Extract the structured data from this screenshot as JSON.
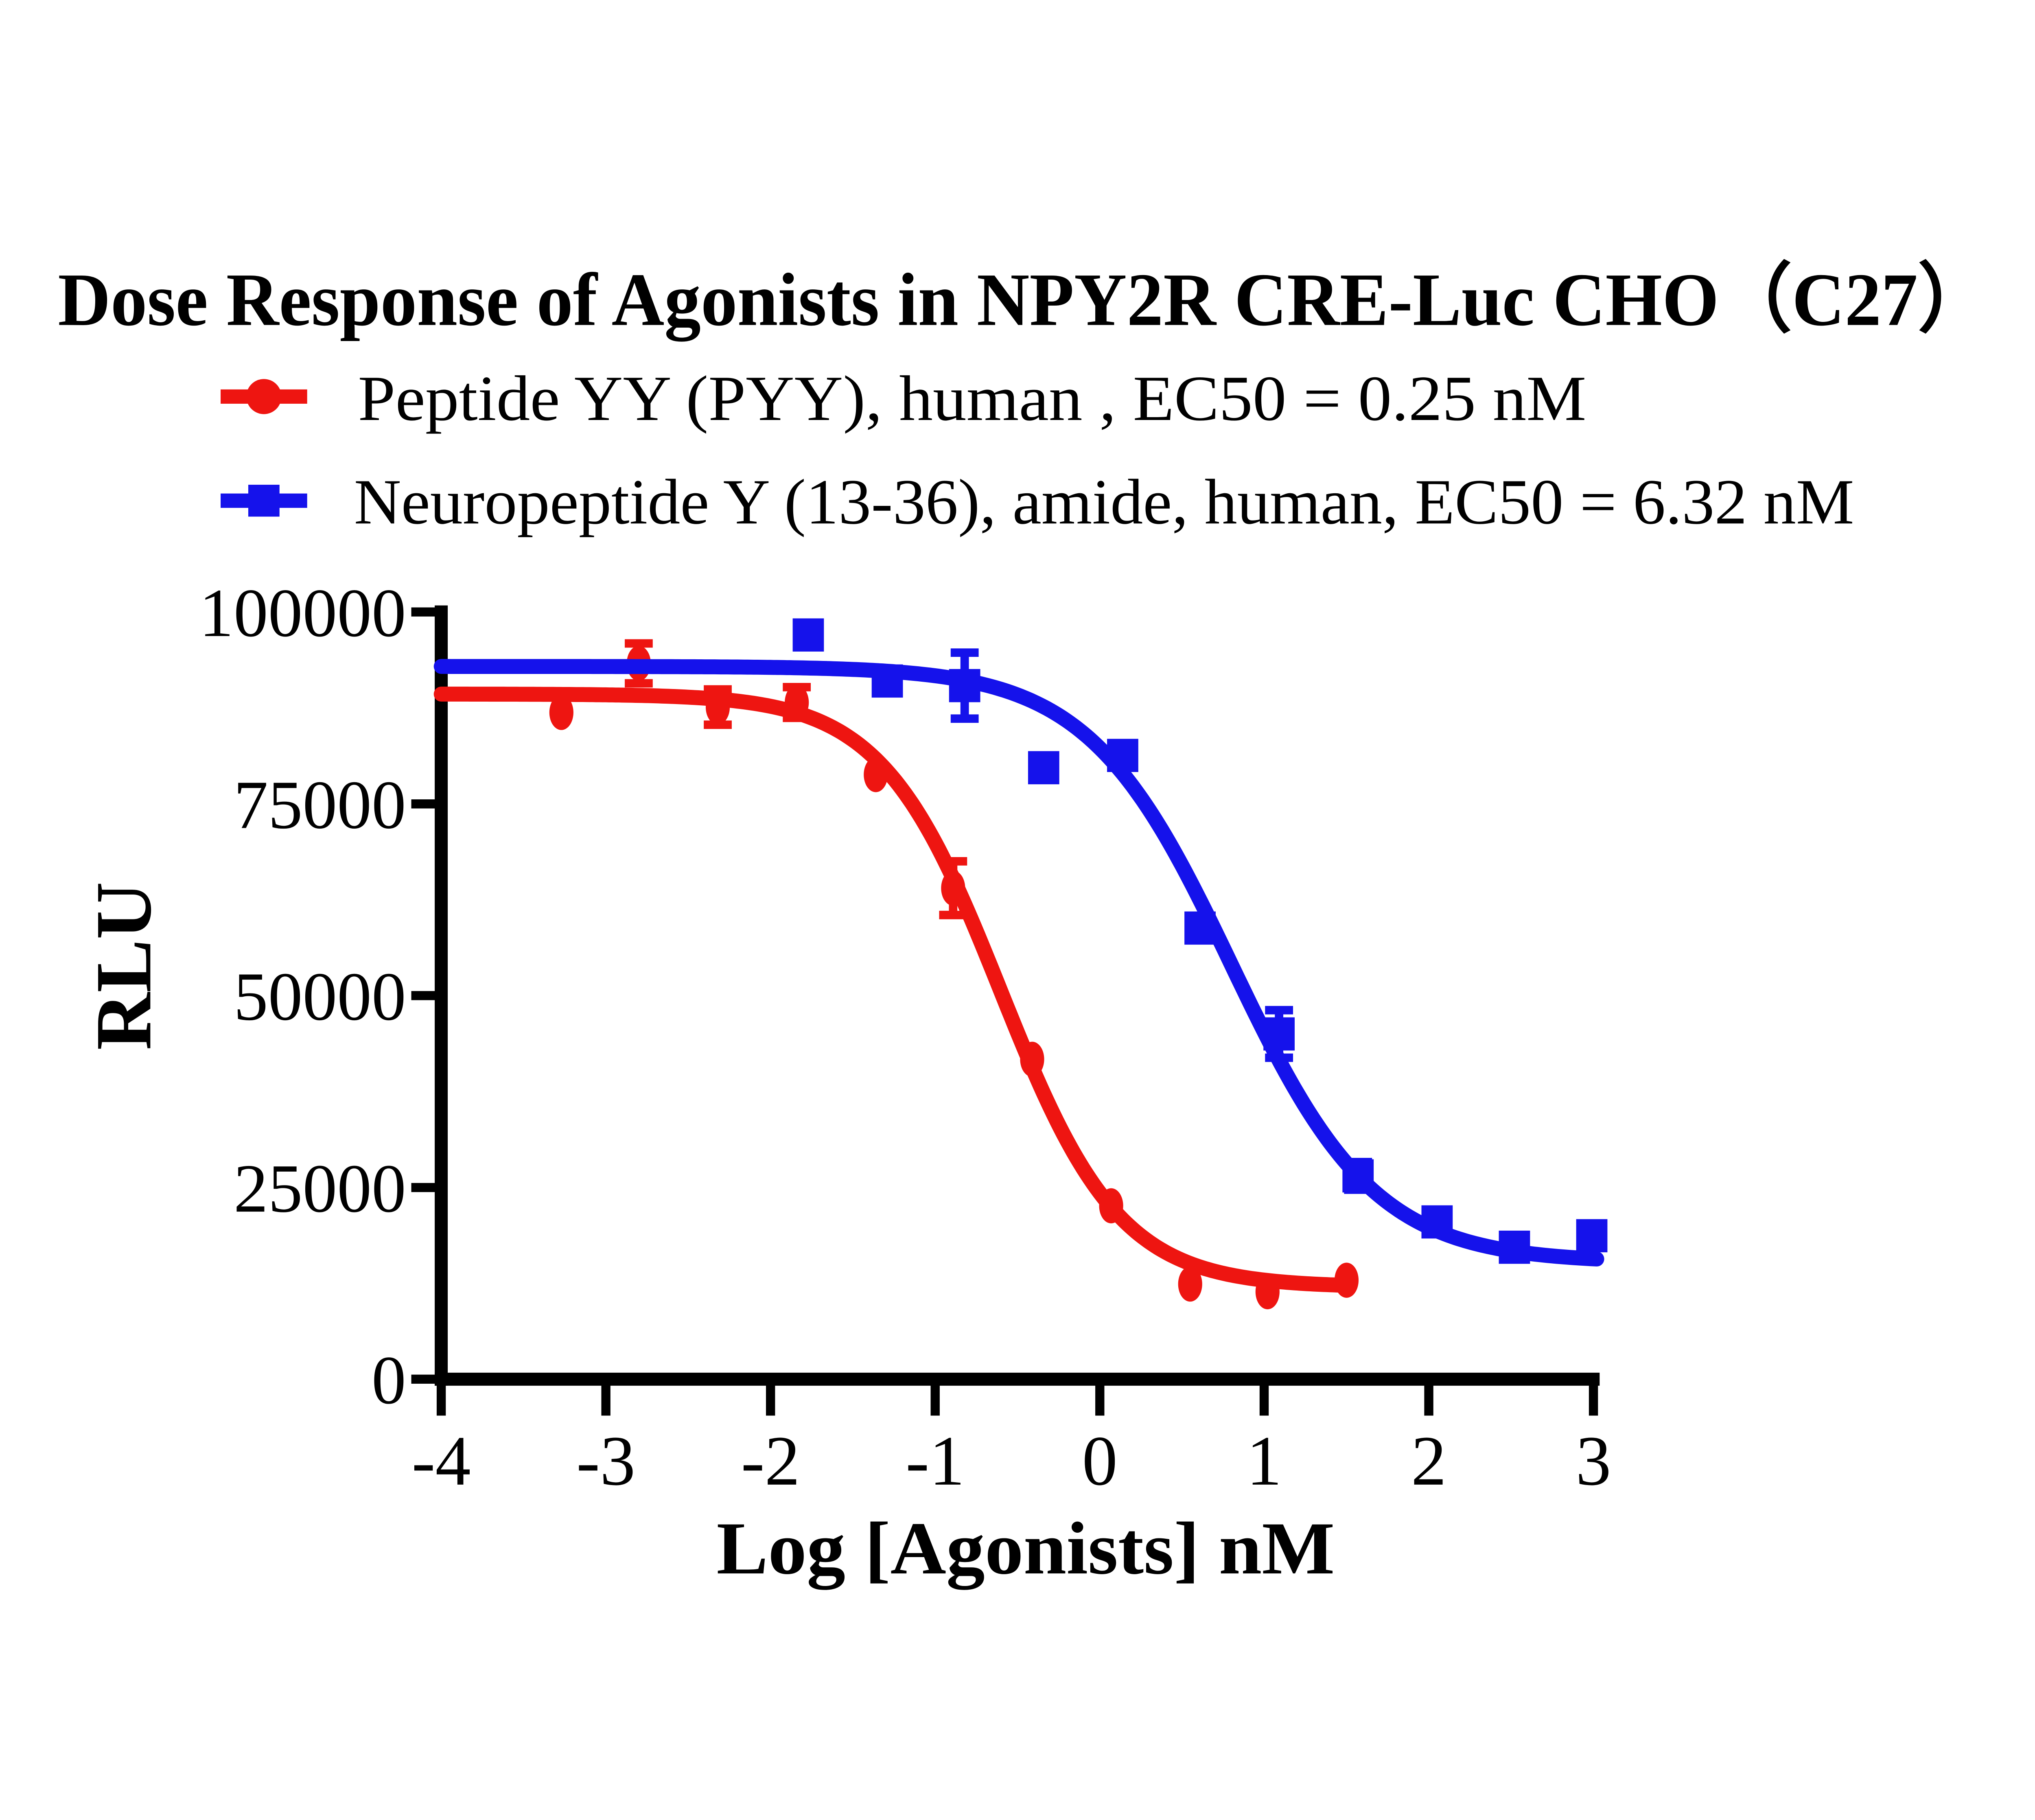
{
  "title": "Dose Response of Agonists in NPY2R CRE-Luc CHO（C27）",
  "colors": {
    "red": "#ee1511",
    "blue": "#1512eb",
    "axis": "#000000",
    "background": "#ffffff"
  },
  "legend": {
    "position": "top-left",
    "items": [
      {
        "label": "Peptide YY (PYY), human , EC50 = 0.25 nM",
        "marker": "circle",
        "color": "#ee1511"
      },
      {
        "label": "Neuropeptide Y (13-36), amide, human, EC50 = 6.32 nM",
        "marker": "square",
        "color": "#1512eb"
      }
    ]
  },
  "chart_data": {
    "type": "scatter",
    "title": "Dose Response of Agonists in NPY2R CRE-Luc CHO（C27）",
    "xlabel": "Log [Agonists] nM",
    "ylabel": "RLU",
    "xlim": [
      -4,
      3
    ],
    "ylim": [
      0,
      100000
    ],
    "x_tick_labels": [
      "-4",
      "-3",
      "-2",
      "-1",
      "0",
      "1",
      "2",
      "3"
    ],
    "y_tick_labels": [
      "100000",
      "75000",
      "50000",
      "25000",
      "0"
    ],
    "grid": false,
    "legend_position": "top-left",
    "series": [
      {
        "id": "pyy",
        "name": "Peptide YY (PYY), human , EC50 = 0.25 nM",
        "color": "#ee1511",
        "marker": "circle",
        "ec50_nM": 0.25,
        "points": [
          {
            "x": -3.27,
            "y": 86900
          },
          {
            "x": -2.8,
            "y": 93300,
            "err": 2600
          },
          {
            "x": -2.32,
            "y": 87600,
            "err": 2300
          },
          {
            "x": -1.84,
            "y": 88200,
            "err": 2000
          },
          {
            "x": -1.36,
            "y": 78800
          },
          {
            "x": -0.89,
            "y": 64000,
            "err": 3500
          },
          {
            "x": -0.41,
            "y": 41700
          },
          {
            "x": 0.07,
            "y": 22600
          },
          {
            "x": 0.55,
            "y": 12400
          },
          {
            "x": 1.02,
            "y": 11400
          },
          {
            "x": 1.5,
            "y": 12900
          }
        ],
        "fit": {
          "top": 89300,
          "bottom": 12000,
          "logEC50": -0.602,
          "hill": 1.2,
          "x_start": -4,
          "x_end": 1.52
        }
      },
      {
        "id": "npy1336",
        "name": "Neuropeptide Y (13-36), amide, human, EC50 = 6.32 nM",
        "color": "#1512eb",
        "marker": "square",
        "ec50_nM": 6.32,
        "points": [
          {
            "x": -1.77,
            "y": 97000
          },
          {
            "x": -1.29,
            "y": 91000
          },
          {
            "x": -0.82,
            "y": 90400,
            "err": 4300
          },
          {
            "x": -0.34,
            "y": 79700
          },
          {
            "x": 0.14,
            "y": 81300
          },
          {
            "x": 0.61,
            "y": 58800
          },
          {
            "x": 1.09,
            "y": 45000,
            "err": 3100
          },
          {
            "x": 1.57,
            "y": 26500,
            "err": 1800
          },
          {
            "x": 2.05,
            "y": 20500
          },
          {
            "x": 2.52,
            "y": 17200
          },
          {
            "x": 2.99,
            "y": 18700
          }
        ],
        "fit": {
          "top": 92900,
          "bottom": 15200,
          "logEC50": 0.8,
          "hill": 1.0,
          "x_start": -4,
          "x_end": 3.02
        }
      }
    ]
  }
}
